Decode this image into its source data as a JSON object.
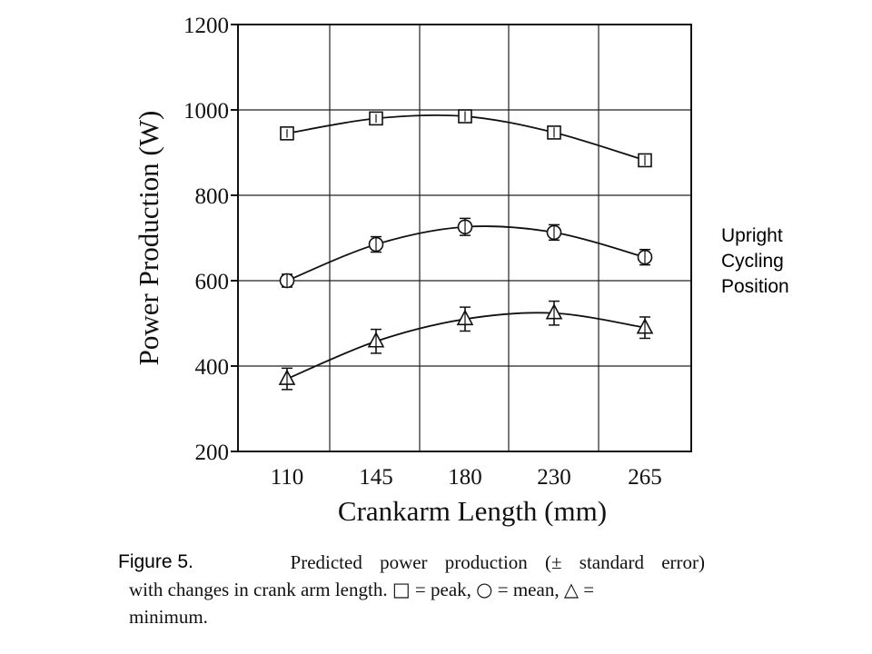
{
  "chart_data": {
    "type": "line",
    "xlabel": "Crankarm Length (mm)",
    "ylabel": "Power Production (W)",
    "categories": [
      "110",
      "145",
      "180",
      "230",
      "265"
    ],
    "ylim": [
      200,
      1200
    ],
    "yticks": [
      200,
      400,
      600,
      800,
      1000,
      1200
    ],
    "grid": true,
    "error_bars": true,
    "series": [
      {
        "name": "peak",
        "marker": "square",
        "values": [
          945,
          980,
          985,
          947,
          882
        ],
        "errors": [
          10,
          10,
          12,
          12,
          12
        ]
      },
      {
        "name": "mean",
        "marker": "circle",
        "values": [
          600,
          685,
          726,
          713,
          655
        ],
        "errors": [
          15,
          18,
          20,
          18,
          18
        ]
      },
      {
        "name": "minimum",
        "marker": "triangle",
        "values": [
          370,
          458,
          510,
          524,
          490
        ],
        "errors": [
          25,
          28,
          28,
          28,
          25
        ]
      }
    ]
  },
  "side_note": [
    "Upright",
    "Cycling",
    "Position"
  ],
  "caption": {
    "label": "Figure 5.",
    "line1_text": "Predicted power production (± standard error)",
    "line2_text_a": "with changes in crank arm length.",
    "line2_sym1": "□",
    "line2_text_b": "= peak,",
    "line2_sym2": "○",
    "line2_text_c": "= mean,",
    "line2_sym3": "△",
    "line2_text_d": "=",
    "line3_text": "minimum."
  }
}
